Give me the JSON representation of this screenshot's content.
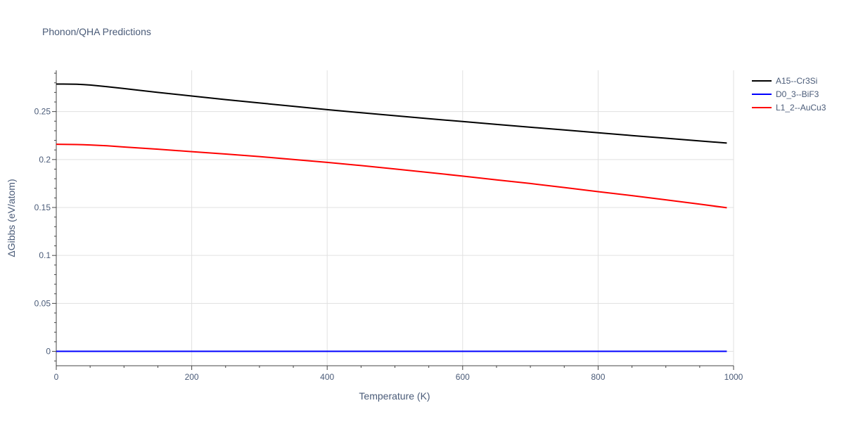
{
  "chart_data": {
    "type": "line",
    "title": "Phonon/QHA Predictions",
    "xlabel": "Temperature (K)",
    "ylabel": "ΔGibbs (eV/atom)",
    "xlim": [
      0,
      1000
    ],
    "ylim": [
      -0.015,
      0.293
    ],
    "x_ticks": [
      0,
      200,
      400,
      600,
      800,
      1000
    ],
    "x_tick_labels": [
      "0",
      "200",
      "400",
      "600",
      "800",
      "1000"
    ],
    "y_ticks": [
      0,
      0.05,
      0.1,
      0.15,
      0.2,
      0.25
    ],
    "y_tick_labels": [
      "0",
      "0.05",
      "0.1",
      "0.15",
      "0.2",
      "0.25"
    ],
    "grid": true,
    "legend_position": "top-right",
    "series": [
      {
        "name": "A15--Cr3Si",
        "color": "#000000",
        "x": [
          0,
          10,
          20,
          30,
          40,
          50,
          75,
          100,
          150,
          200,
          250,
          300,
          350,
          400,
          450,
          500,
          550,
          600,
          650,
          700,
          750,
          800,
          850,
          900,
          950,
          990
        ],
        "y": [
          0.2787,
          0.2787,
          0.2786,
          0.2785,
          0.2782,
          0.2777,
          0.276,
          0.274,
          0.27,
          0.2662,
          0.2625,
          0.259,
          0.2555,
          0.252,
          0.2488,
          0.2457,
          0.2426,
          0.2396,
          0.2366,
          0.2337,
          0.2308,
          0.2279,
          0.225,
          0.2222,
          0.2194,
          0.2172
        ]
      },
      {
        "name": "D0_3--BiF3",
        "color": "#0000ff",
        "x": [
          0,
          990
        ],
        "y": [
          0,
          0
        ]
      },
      {
        "name": "L1_2--AuCu3",
        "color": "#ff0000",
        "x": [
          0,
          10,
          20,
          30,
          40,
          50,
          75,
          100,
          150,
          200,
          250,
          300,
          350,
          400,
          450,
          500,
          550,
          600,
          650,
          700,
          750,
          800,
          850,
          900,
          950,
          990
        ],
        "y": [
          0.2159,
          0.2158,
          0.2157,
          0.2156,
          0.2154,
          0.2152,
          0.2143,
          0.2131,
          0.2108,
          0.2082,
          0.2057,
          0.2031,
          0.2,
          0.197,
          0.1937,
          0.1901,
          0.1865,
          0.1827,
          0.1788,
          0.175,
          0.1708,
          0.1665,
          0.1624,
          0.158,
          0.1535,
          0.1497
        ]
      }
    ]
  }
}
